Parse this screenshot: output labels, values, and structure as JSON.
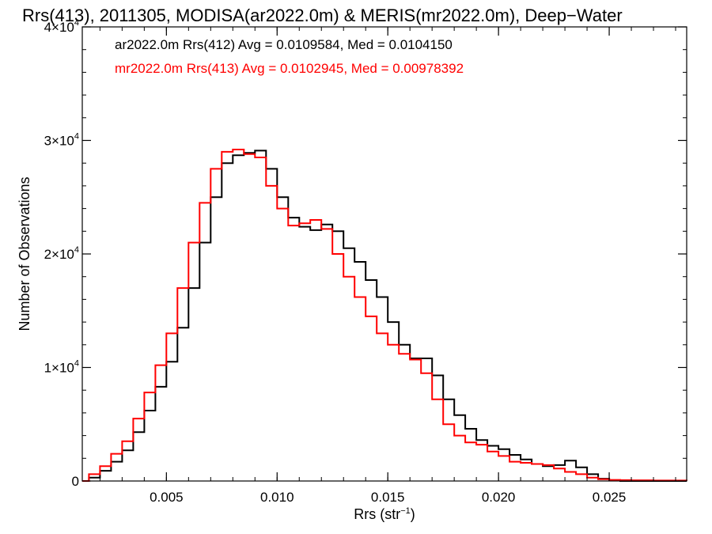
{
  "chart_data": {
    "type": "line",
    "title": "Rrs(413), 2011305, MODISA(ar2022.0m) & MERIS(mr2022.0m), Deep−Water",
    "xlabel": "Rrs (str",
    "xlabel_sup": "−1",
    "xlabel_close": ")",
    "ylabel": "Number of Observations",
    "xlim": [
      0.0012,
      0.0285
    ],
    "ylim": [
      0,
      40000
    ],
    "x_ticks": [
      {
        "value": 0.005,
        "label": "0.005"
      },
      {
        "value": 0.01,
        "label": "0.010"
      },
      {
        "value": 0.015,
        "label": "0.015"
      },
      {
        "value": 0.02,
        "label": "0.020"
      },
      {
        "value": 0.025,
        "label": "0.025"
      }
    ],
    "y_ticks": [
      {
        "value": 0,
        "label": "0"
      },
      {
        "value": 10000,
        "label": "1×10",
        "sup": "4"
      },
      {
        "value": 20000,
        "label": "2×10",
        "sup": "4"
      },
      {
        "value": 30000,
        "label": "3×10",
        "sup": "4"
      },
      {
        "value": 40000,
        "label": "4×10",
        "sup": "4"
      }
    ],
    "grid": false,
    "legend_placement": "top-left",
    "series": [
      {
        "name": "ar2022.0m Rrs(412) Avg = 0.0109584, Med = 0.0104150",
        "color": "#000000",
        "x": [
          0.0012,
          0.0015,
          0.002,
          0.0025,
          0.003,
          0.0035,
          0.004,
          0.0045,
          0.005,
          0.0055,
          0.006,
          0.0065,
          0.007,
          0.0075,
          0.008,
          0.0085,
          0.009,
          0.0095,
          0.01,
          0.0105,
          0.011,
          0.0115,
          0.012,
          0.0125,
          0.013,
          0.0135,
          0.014,
          0.0145,
          0.015,
          0.0155,
          0.016,
          0.0165,
          0.017,
          0.0175,
          0.018,
          0.0185,
          0.019,
          0.0195,
          0.02,
          0.0205,
          0.021,
          0.0215,
          0.022,
          0.0225,
          0.023,
          0.0235,
          0.024,
          0.0245,
          0.025,
          0.0255,
          0.026,
          0.027,
          0.0285
        ],
        "y": [
          0,
          300,
          900,
          1700,
          2700,
          4300,
          6200,
          8300,
          10500,
          13500,
          17000,
          21000,
          25000,
          28000,
          28700,
          28900,
          29100,
          27500,
          25000,
          23200,
          22400,
          22100,
          22600,
          22000,
          20500,
          19300,
          17700,
          16200,
          14000,
          12000,
          10800,
          10800,
          9300,
          7200,
          5800,
          4600,
          3600,
          3100,
          2800,
          2300,
          1900,
          1500,
          1300,
          1400,
          1800,
          1200,
          600,
          200,
          50,
          0,
          0,
          0,
          0
        ]
      },
      {
        "name": "mr2022.0m Rrs(413) Avg = 0.0102945, Med = 0.00978392",
        "color": "#ff0000",
        "x": [
          0.0012,
          0.0015,
          0.002,
          0.0025,
          0.003,
          0.0035,
          0.004,
          0.0045,
          0.005,
          0.0055,
          0.006,
          0.0065,
          0.007,
          0.0075,
          0.008,
          0.0085,
          0.009,
          0.0095,
          0.01,
          0.0105,
          0.011,
          0.0115,
          0.012,
          0.0125,
          0.013,
          0.0135,
          0.014,
          0.0145,
          0.015,
          0.0155,
          0.016,
          0.0165,
          0.017,
          0.0175,
          0.018,
          0.0185,
          0.019,
          0.0195,
          0.02,
          0.0205,
          0.021,
          0.0215,
          0.022,
          0.0225,
          0.023,
          0.0235,
          0.024,
          0.0245,
          0.025,
          0.0255,
          0.026,
          0.027,
          0.0285
        ],
        "y": [
          0,
          600,
          1300,
          2400,
          3500,
          5500,
          7800,
          10200,
          13000,
          17000,
          21000,
          24500,
          27500,
          29000,
          29200,
          28800,
          28500,
          26000,
          24000,
          22500,
          22700,
          23000,
          22200,
          20000,
          18000,
          16200,
          14500,
          13000,
          12000,
          11200,
          10700,
          9500,
          7200,
          5000,
          4000,
          3400,
          3200,
          2600,
          2200,
          1700,
          1600,
          1500,
          1400,
          1100,
          800,
          600,
          300,
          150,
          100,
          80,
          60,
          40,
          20
        ]
      }
    ]
  }
}
